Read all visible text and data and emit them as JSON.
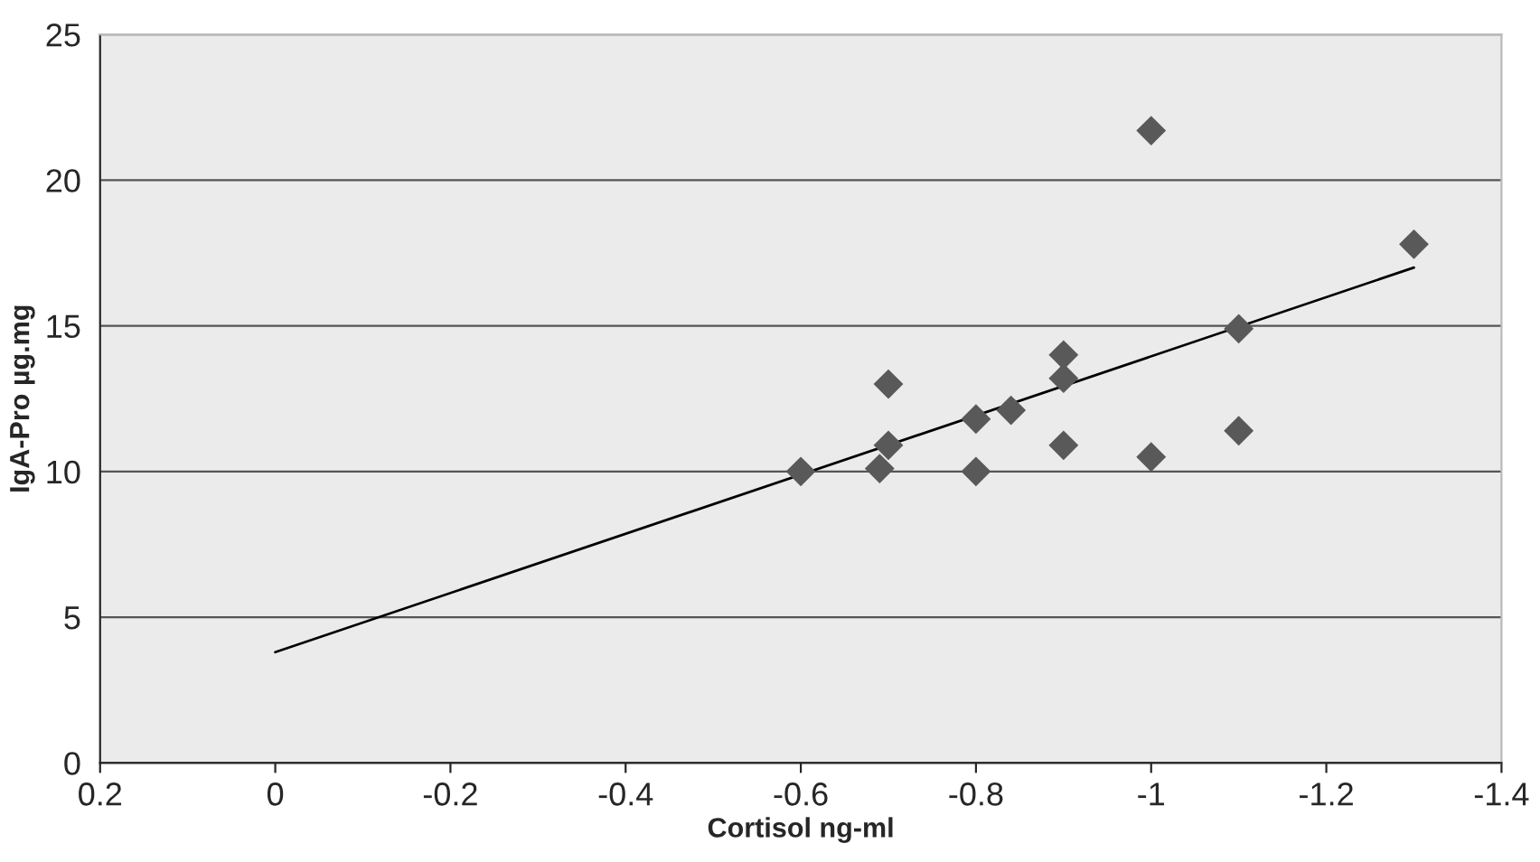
{
  "chart_data": {
    "type": "scatter",
    "xlabel": "Cortisol ng-ml",
    "ylabel": "IgA-Pro µg.mg",
    "xlim": [
      0.2,
      -1.4
    ],
    "xticks": [
      0.2,
      0,
      -0.2,
      -0.4,
      -0.6,
      -0.8,
      -1,
      -1.2,
      -1.4
    ],
    "ylim": [
      0,
      25
    ],
    "yticks": [
      0,
      5,
      10,
      15,
      20,
      25
    ],
    "grid": "y",
    "series": [
      {
        "marker": "diamond",
        "color": "#595959",
        "x": [
          -0.6,
          -0.69,
          -0.7,
          -0.7,
          -0.8,
          -0.8,
          -0.84,
          -0.9,
          -0.9,
          -0.9,
          -1,
          -1,
          -1.1,
          -1.1,
          -1.3
        ],
        "values": [
          10,
          10.1,
          10.9,
          13,
          11.8,
          10,
          12.1,
          14,
          13.2,
          10.9,
          21.7,
          10.5,
          14.9,
          11.4,
          17.8
        ]
      },
      {
        "type": "line",
        "marker": "none",
        "color": "#000000",
        "x": [
          0,
          -1.3
        ],
        "values": [
          3.8,
          17.0
        ]
      }
    ]
  }
}
